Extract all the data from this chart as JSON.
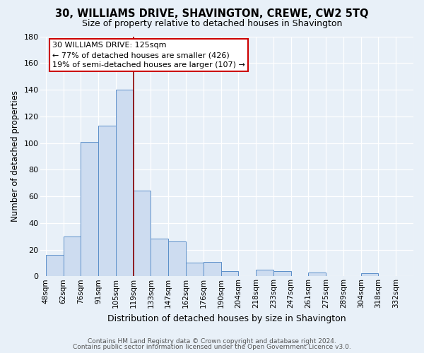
{
  "title": "30, WILLIAMS DRIVE, SHAVINGTON, CREWE, CW2 5TQ",
  "subtitle": "Size of property relative to detached houses in Shavington",
  "xlabel": "Distribution of detached houses by size in Shavington",
  "ylabel": "Number of detached properties",
  "bin_labels": [
    "48sqm",
    "62sqm",
    "76sqm",
    "91sqm",
    "105sqm",
    "119sqm",
    "133sqm",
    "147sqm",
    "162sqm",
    "176sqm",
    "190sqm",
    "204sqm",
    "218sqm",
    "233sqm",
    "247sqm",
    "261sqm",
    "275sqm",
    "289sqm",
    "304sqm",
    "318sqm",
    "332sqm"
  ],
  "bar_heights": [
    16,
    30,
    101,
    113,
    140,
    64,
    28,
    26,
    10,
    11,
    4,
    0,
    5,
    4,
    0,
    3,
    0,
    0,
    2,
    0,
    0
  ],
  "bar_color": "#cddcf0",
  "bar_edge_color": "#5b8fc9",
  "vline_x": 5,
  "vline_color": "#8b0000",
  "annotation_line1": "30 WILLIAMS DRIVE: 125sqm",
  "annotation_line2": "← 77% of detached houses are smaller (426)",
  "annotation_line3": "19% of semi-detached houses are larger (107) →",
  "annotation_box_color": "#ffffff",
  "annotation_box_edge_color": "#cc0000",
  "ylim": [
    0,
    180
  ],
  "yticks": [
    0,
    20,
    40,
    60,
    80,
    100,
    120,
    140,
    160,
    180
  ],
  "footer1": "Contains HM Land Registry data © Crown copyright and database right 2024.",
  "footer2": "Contains public sector information licensed under the Open Government Licence v3.0.",
  "bg_color": "#e8f0f8",
  "plot_bg_color": "#e8f0f8",
  "title_fontsize": 10.5,
  "subtitle_fontsize": 9,
  "ylabel_fontsize": 8.5,
  "xlabel_fontsize": 9,
  "tick_fontsize": 7.5,
  "footer_fontsize": 6.5
}
